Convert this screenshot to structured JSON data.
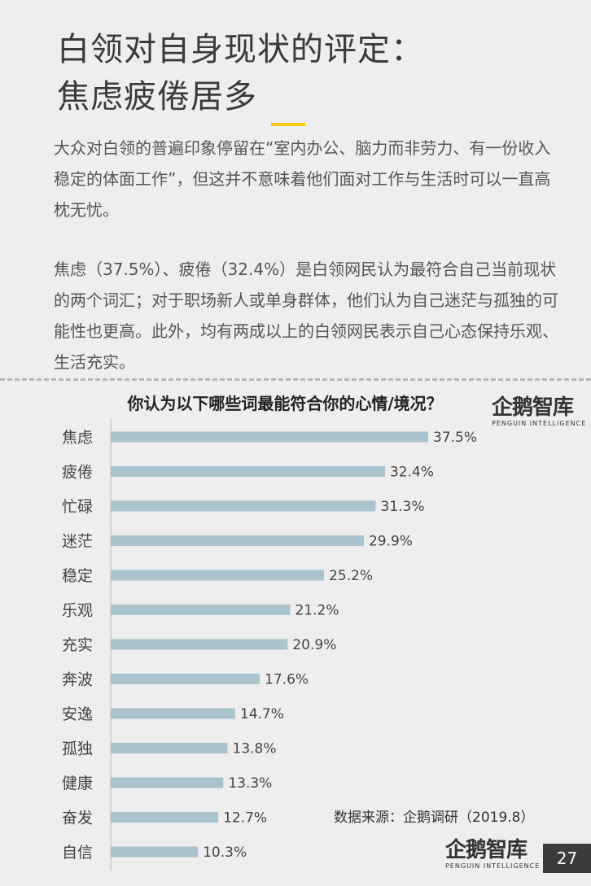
{
  "title_line1": "白领对自身现状的评定：",
  "title_line2": "焦虑疲倦居多",
  "paragraph1": "大众对白领的普遍印象停留在“室内办公、脑力而非劳力、有一份收入稳定的体面工作”，但这并不意味着他们面对工作与生活时可以一直高枕无忧。",
  "paragraph2": "焦虑（37.5%）、疲倦（32.4%）是白领网民认为最符合自己当前现状的两个词汇；对于职场新人或单身群体，他们认为自己迷茫与孤独的可能性也更高。此外，均有两成以上的白领网民表示自己心态保持乐观、生活充实。",
  "logo": {
    "name": "企鹅智库",
    "subtitle": "PENGUIN INTELLIGENCE"
  },
  "source": "数据来源：企鹅调研（2019.8）",
  "page_number": "27",
  "colors": {
    "bar": "#a9c4cc",
    "accent": "#f2c80f",
    "background": "#eeeeee"
  },
  "chart_data": {
    "type": "bar",
    "orientation": "horizontal",
    "title": "你认为以下哪些词最能符合你的心情/境况？",
    "categories": [
      "焦虑",
      "疲倦",
      "忙碌",
      "迷茫",
      "稳定",
      "乐观",
      "充实",
      "奔波",
      "安逸",
      "孤独",
      "健康",
      "奋发",
      "自信"
    ],
    "values": [
      37.5,
      32.4,
      31.3,
      29.9,
      25.2,
      21.2,
      20.9,
      17.6,
      14.7,
      13.8,
      13.3,
      12.7,
      10.3
    ],
    "value_labels": [
      "37.5%",
      "32.4%",
      "31.3%",
      "29.9%",
      "25.2%",
      "21.2%",
      "20.9%",
      "17.6%",
      "14.7%",
      "13.8%",
      "13.3%",
      "12.7%",
      "10.3%"
    ],
    "unit": "%",
    "grid": false,
    "legend": "none"
  }
}
